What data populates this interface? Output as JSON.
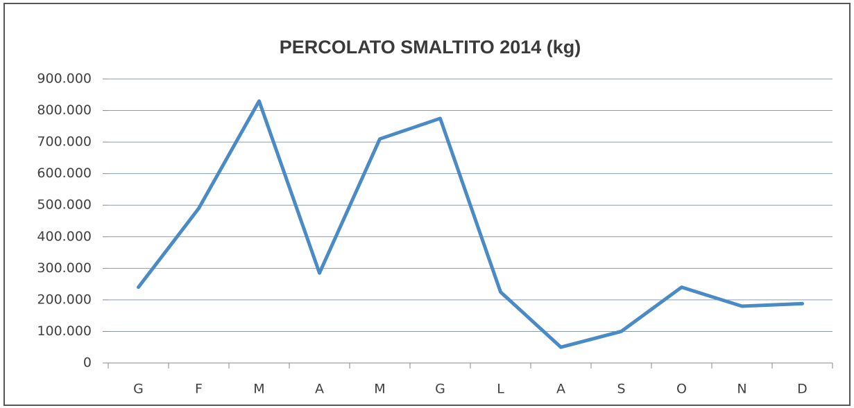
{
  "chart_data": {
    "type": "line",
    "title": "PERCOLATO SMALTITO 2014 (kg)",
    "categories": [
      "G",
      "F",
      "M",
      "A",
      "M",
      "G",
      "L",
      "A",
      "S",
      "O",
      "N",
      "D"
    ],
    "series": [
      {
        "color": "#4a8bc6",
        "values": [
          240000,
          490000,
          830000,
          285000,
          710000,
          775000,
          225000,
          50000,
          100000,
          240000,
          180000,
          188000
        ]
      }
    ],
    "ylim": [
      0,
      900000
    ],
    "yticks": [
      0,
      {
        "value": 100000,
        "label": "100.000"
      },
      {
        "value": 200000,
        "label": "200.000"
      },
      {
        "value": 300000,
        "label": "300.000"
      },
      {
        "value": 400000,
        "label": "400.000"
      },
      {
        "value": 500000,
        "label": "500.000"
      },
      {
        "value": 600000,
        "label": "600.000"
      },
      {
        "value": 700000,
        "label": "700.000"
      },
      {
        "value": 800000,
        "label": "800.000"
      },
      {
        "value": 900000,
        "label": "900.000"
      }
    ],
    "grid": true
  }
}
